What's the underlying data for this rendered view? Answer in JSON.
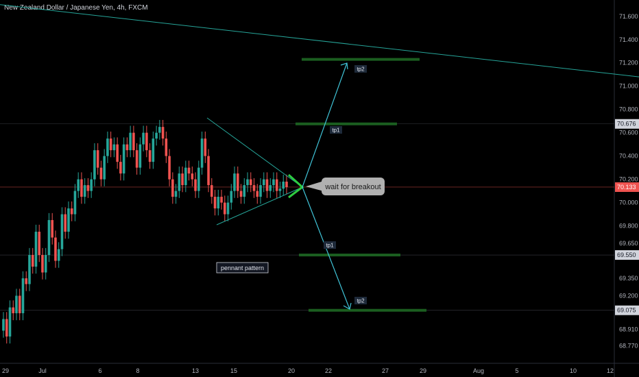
{
  "title": "New Zealand Dollar / Japanese Yen, 4h, FXCM",
  "colors": {
    "background": "#000000",
    "up": "#26a69a",
    "down": "#ef5350",
    "trend": "#26a69a",
    "arrow": "#40c4d8",
    "tp_line": "#1b5e20",
    "apex": "#2ecc40",
    "price_tag": "#ef5350",
    "level_tag": "#d1d4dc"
  },
  "chart_data": {
    "type": "candlestick",
    "instrument": "New Zealand Dollar / Japanese Yen",
    "interval": "4h",
    "source": "FXCM",
    "ylim": [
      68.62,
      71.74
    ],
    "y_ticks": [
      "71.600",
      "71.400",
      "71.200",
      "71.000",
      "70.800",
      "70.600",
      "70.400",
      "70.200",
      "70.000",
      "69.800",
      "69.650",
      "69.350",
      "69.200",
      "68.910",
      "68.770"
    ],
    "y_tick_values": [
      71.6,
      71.4,
      71.2,
      71.0,
      70.8,
      70.6,
      70.4,
      70.2,
      70.0,
      69.8,
      69.65,
      69.35,
      69.2,
      68.91,
      68.77
    ],
    "x_ticks": [
      "29",
      "Jul",
      "6",
      "8",
      "13",
      "15",
      "20",
      "22",
      "27",
      "29",
      "Aug",
      "5",
      "10",
      "12"
    ],
    "levels": [
      {
        "value": 70.676,
        "label": "70.676",
        "style": "level"
      },
      {
        "value": 70.133,
        "label": "70.133",
        "style": "current"
      },
      {
        "value": 69.55,
        "label": "69.550",
        "style": "level"
      },
      {
        "value": 69.075,
        "label": "69.075",
        "style": "level"
      }
    ],
    "candles": [
      [
        68.9,
        69.0
      ],
      [
        69.0,
        68.85
      ],
      [
        68.85,
        69.1
      ],
      [
        69.1,
        69.05
      ],
      [
        69.05,
        69.2
      ],
      [
        69.2,
        69.05
      ],
      [
        69.05,
        69.35
      ],
      [
        69.35,
        69.3
      ],
      [
        69.3,
        69.55
      ],
      [
        69.55,
        69.45
      ],
      [
        69.45,
        69.75
      ],
      [
        69.75,
        69.55
      ],
      [
        69.55,
        69.4
      ],
      [
        69.4,
        69.55
      ],
      [
        69.55,
        69.85
      ],
      [
        69.85,
        69.7
      ],
      [
        69.7,
        69.5
      ],
      [
        69.5,
        69.6
      ],
      [
        69.6,
        69.9
      ],
      [
        69.9,
        69.75
      ],
      [
        69.75,
        69.95
      ],
      [
        69.95,
        69.9
      ],
      [
        69.9,
        70.1
      ],
      [
        70.1,
        70.2
      ],
      [
        70.2,
        70.05
      ],
      [
        70.05,
        70.15
      ],
      [
        70.15,
        70.1
      ],
      [
        70.1,
        70.2
      ],
      [
        70.2,
        70.45
      ],
      [
        70.45,
        70.3
      ],
      [
        70.3,
        70.2
      ],
      [
        70.2,
        70.4
      ],
      [
        70.4,
        70.55
      ],
      [
        70.55,
        70.45
      ],
      [
        70.45,
        70.5
      ],
      [
        70.5,
        70.35
      ],
      [
        70.35,
        70.25
      ],
      [
        70.25,
        70.5
      ],
      [
        70.5,
        70.45
      ],
      [
        70.45,
        70.6
      ],
      [
        70.6,
        70.45
      ],
      [
        70.45,
        70.3
      ],
      [
        70.3,
        70.5
      ],
      [
        70.5,
        70.6
      ],
      [
        70.6,
        70.45
      ],
      [
        70.45,
        70.35
      ],
      [
        70.35,
        70.55
      ],
      [
        70.55,
        70.6
      ],
      [
        70.6,
        70.65
      ],
      [
        70.65,
        70.55
      ],
      [
        70.55,
        70.4
      ],
      [
        70.4,
        70.2
      ],
      [
        70.2,
        70.05
      ],
      [
        70.05,
        70.1
      ],
      [
        70.1,
        70.25
      ],
      [
        70.25,
        70.15
      ],
      [
        70.15,
        70.3
      ],
      [
        70.3,
        70.25
      ],
      [
        70.25,
        70.2
      ],
      [
        70.2,
        70.1
      ],
      [
        70.1,
        70.3
      ],
      [
        70.3,
        70.55
      ],
      [
        70.55,
        70.4
      ],
      [
        70.4,
        70.15
      ],
      [
        70.15,
        70.05
      ],
      [
        70.05,
        69.95
      ],
      [
        69.95,
        70.05
      ],
      [
        70.05,
        70.0
      ],
      [
        70.0,
        69.9
      ],
      [
        69.9,
        70.0
      ],
      [
        70.0,
        70.1
      ],
      [
        70.1,
        70.25
      ],
      [
        70.25,
        70.1
      ],
      [
        70.1,
        70.05
      ],
      [
        70.05,
        70.15
      ],
      [
        70.15,
        70.2
      ],
      [
        70.2,
        70.15
      ],
      [
        70.15,
        70.1
      ],
      [
        70.1,
        70.05
      ],
      [
        70.05,
        70.15
      ],
      [
        70.15,
        70.2
      ],
      [
        70.2,
        70.1
      ],
      [
        70.1,
        70.15
      ],
      [
        70.15,
        70.2
      ],
      [
        70.2,
        70.1
      ],
      [
        70.1,
        70.12
      ],
      [
        70.12,
        70.18
      ],
      [
        70.18,
        70.133
      ]
    ],
    "drawings": {
      "trendline": {
        "from": [
          0,
          71.7
        ],
        "to": [
          932,
          71.08
        ]
      },
      "pennant": {
        "apex_price": 70.133
      },
      "targets_up": [
        {
          "label": "tp1",
          "price": 70.676
        },
        {
          "label": "tp2",
          "price": 71.23
        }
      ],
      "targets_down": [
        {
          "label": "tp1",
          "price": 69.55
        },
        {
          "label": "tp2",
          "price": 69.075
        }
      ]
    }
  },
  "annotations": {
    "breakout": "wait for breakout",
    "pattern": "pennant pattern"
  }
}
